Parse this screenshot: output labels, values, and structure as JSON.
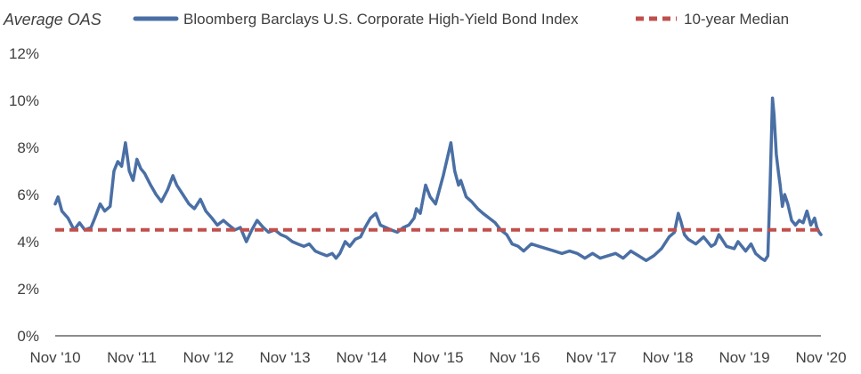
{
  "chart_data": {
    "type": "line",
    "ylabel": "Average OAS",
    "ylim": [
      0,
      12
    ],
    "yticks": [
      "0%",
      "2%",
      "4%",
      "6%",
      "8%",
      "10%",
      "12%"
    ],
    "ytick_values": [
      0,
      2,
      4,
      6,
      8,
      10,
      12
    ],
    "xlim": [
      2010.833,
      2020.833
    ],
    "xticks": [
      "Nov '10",
      "Nov '11",
      "Nov '12",
      "Nov '13",
      "Nov '14",
      "Nov '15",
      "Nov '16",
      "Nov '17",
      "Nov '18",
      "Nov '19",
      "Nov '20"
    ],
    "xtick_values": [
      2010.833,
      2011.833,
      2012.833,
      2013.833,
      2014.833,
      2015.833,
      2016.833,
      2017.833,
      2018.833,
      2019.833,
      2020.833
    ],
    "grid": false,
    "legend_position": "top",
    "series": [
      {
        "name": "Bloomberg Barclays U.S. Corporate High-Yield Bond Index",
        "color": "#4a6fa5",
        "style": "solid",
        "x": [
          2010.833,
          2010.87,
          2010.92,
          2011.0,
          2011.08,
          2011.15,
          2011.22,
          2011.3,
          2011.35,
          2011.42,
          2011.48,
          2011.55,
          2011.6,
          2011.65,
          2011.7,
          2011.75,
          2011.8,
          2011.85,
          2011.9,
          2011.95,
          2012.0,
          2012.08,
          2012.15,
          2012.22,
          2012.3,
          2012.37,
          2012.42,
          2012.5,
          2012.58,
          2012.65,
          2012.73,
          2012.8,
          2012.88,
          2012.95,
          2013.03,
          2013.1,
          2013.18,
          2013.25,
          2013.33,
          2013.4,
          2013.47,
          2013.55,
          2013.62,
          2013.7,
          2013.78,
          2013.85,
          2013.93,
          2014.0,
          2014.08,
          2014.15,
          2014.23,
          2014.3,
          2014.38,
          2014.45,
          2014.5,
          2014.55,
          2014.62,
          2014.68,
          2014.75,
          2014.82,
          2014.88,
          2014.95,
          2015.02,
          2015.08,
          2015.15,
          2015.22,
          2015.3,
          2015.38,
          2015.45,
          2015.52,
          2015.55,
          2015.6,
          2015.67,
          2015.73,
          2015.8,
          2015.85,
          2015.9,
          2015.95,
          2016.0,
          2016.05,
          2016.1,
          2016.13,
          2016.2,
          2016.27,
          2016.35,
          2016.42,
          2016.5,
          2016.58,
          2016.65,
          2016.73,
          2016.8,
          2016.88,
          2016.95,
          2017.05,
          2017.15,
          2017.25,
          2017.35,
          2017.45,
          2017.55,
          2017.65,
          2017.75,
          2017.85,
          2017.95,
          2018.05,
          2018.15,
          2018.25,
          2018.35,
          2018.45,
          2018.55,
          2018.65,
          2018.75,
          2018.85,
          2018.92,
          2018.97,
          2019.0,
          2019.05,
          2019.1,
          2019.2,
          2019.3,
          2019.4,
          2019.45,
          2019.5,
          2019.6,
          2019.7,
          2019.75,
          2019.85,
          2019.92,
          2019.98,
          2020.05,
          2020.1,
          2020.14,
          2020.17,
          2020.2,
          2020.22,
          2020.25,
          2020.28,
          2020.3,
          2020.33,
          2020.36,
          2020.4,
          2020.45,
          2020.5,
          2020.55,
          2020.6,
          2020.65,
          2020.7,
          2020.75,
          2020.78,
          2020.81,
          2020.833
        ],
        "y": [
          5.6,
          5.9,
          5.3,
          5.0,
          4.5,
          4.8,
          4.5,
          4.6,
          5.0,
          5.6,
          5.3,
          5.5,
          7.0,
          7.4,
          7.2,
          8.2,
          7.0,
          6.6,
          7.5,
          7.1,
          6.9,
          6.4,
          6.0,
          5.7,
          6.2,
          6.8,
          6.4,
          6.0,
          5.6,
          5.4,
          5.8,
          5.3,
          5.0,
          4.7,
          4.9,
          4.7,
          4.5,
          4.6,
          4.0,
          4.5,
          4.9,
          4.6,
          4.4,
          4.5,
          4.3,
          4.2,
          4.0,
          3.9,
          3.8,
          3.9,
          3.6,
          3.5,
          3.4,
          3.5,
          3.3,
          3.5,
          4.0,
          3.8,
          4.1,
          4.2,
          4.6,
          5.0,
          5.2,
          4.7,
          4.6,
          4.5,
          4.4,
          4.6,
          4.7,
          5.0,
          5.4,
          5.2,
          6.4,
          5.9,
          5.6,
          6.2,
          6.8,
          7.5,
          8.2,
          7.0,
          6.4,
          6.6,
          5.9,
          5.7,
          5.4,
          5.2,
          5.0,
          4.8,
          4.5,
          4.3,
          3.9,
          3.8,
          3.6,
          3.9,
          3.8,
          3.7,
          3.6,
          3.5,
          3.6,
          3.5,
          3.3,
          3.5,
          3.3,
          3.4,
          3.5,
          3.3,
          3.6,
          3.4,
          3.2,
          3.4,
          3.7,
          4.2,
          4.4,
          5.2,
          4.9,
          4.3,
          4.1,
          3.9,
          4.2,
          3.8,
          3.9,
          4.3,
          3.8,
          3.7,
          4.0,
          3.6,
          3.9,
          3.5,
          3.3,
          3.2,
          3.4,
          6.5,
          10.1,
          9.4,
          7.7,
          6.9,
          6.4,
          5.5,
          6.0,
          5.6,
          4.9,
          4.7,
          4.9,
          4.8,
          5.3,
          4.7,
          5.0,
          4.6,
          4.4,
          4.3
        ]
      },
      {
        "name": "10-year Median",
        "color": "#c0504d",
        "style": "dashed",
        "x": [
          2010.833,
          2020.833
        ],
        "y": [
          4.5,
          4.5
        ]
      }
    ]
  }
}
